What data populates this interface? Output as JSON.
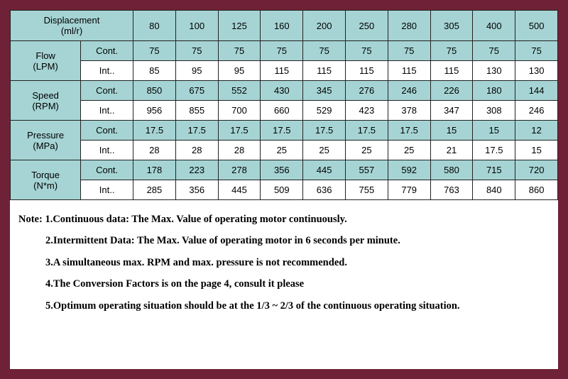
{
  "colors": {
    "page_border": "#6f2237",
    "page_bg": "#ffffff",
    "header_bg": "#a6d4d4",
    "cell_border": "#222222",
    "text": "#000000"
  },
  "header": {
    "displacement": "Displacement\n(ml/r)",
    "cols": [
      "80",
      "100",
      "125",
      "160",
      "200",
      "250",
      "280",
      "305",
      "400",
      "500"
    ]
  },
  "groups": [
    {
      "label": "Flow\n(LPM)",
      "rows": [
        {
          "type": "Cont.",
          "vals": [
            "75",
            "75",
            "75",
            "75",
            "75",
            "75",
            "75",
            "75",
            "75",
            "75"
          ]
        },
        {
          "type": "Int..",
          "vals": [
            "85",
            "95",
            "95",
            "115",
            "115",
            "115",
            "115",
            "115",
            "130",
            "130"
          ]
        }
      ]
    },
    {
      "label": "Speed\n(RPM)",
      "rows": [
        {
          "type": "Cont.",
          "vals": [
            "850",
            "675",
            "552",
            "430",
            "345",
            "276",
            "246",
            "226",
            "180",
            "144"
          ]
        },
        {
          "type": "Int..",
          "vals": [
            "956",
            "855",
            "700",
            "660",
            "529",
            "423",
            "378",
            "347",
            "308",
            "246"
          ]
        }
      ]
    },
    {
      "label": "Pressure\n(MPa)",
      "rows": [
        {
          "type": "Cont.",
          "vals": [
            "17.5",
            "17.5",
            "17.5",
            "17.5",
            "17.5",
            "17.5",
            "17.5",
            "15",
            "15",
            "12"
          ]
        },
        {
          "type": "Int..",
          "vals": [
            "28",
            "28",
            "28",
            "25",
            "25",
            "25",
            "25",
            "21",
            "17.5",
            "15"
          ]
        }
      ]
    },
    {
      "label": "Torque\n(N*m)",
      "rows": [
        {
          "type": "Cont.",
          "vals": [
            "178",
            "223",
            "278",
            "356",
            "445",
            "557",
            "592",
            "580",
            "715",
            "720"
          ]
        },
        {
          "type": "Int..",
          "vals": [
            "285",
            "356",
            "445",
            "509",
            "636",
            "755",
            "779",
            "763",
            "840",
            "860"
          ]
        }
      ]
    }
  ],
  "notes": {
    "lead": "Note: ",
    "items": [
      "1.Continuous data: The Max. Value of operating motor continuously.",
      "2.Intermittent Data: The Max. Value of operating motor in 6 seconds per minute.",
      "3.A simultaneous max. RPM and max. pressure is not recommended.",
      "4.The Conversion Factors is on the page 4, consult it please",
      "5.Optimum operating situation should be at the 1/3 ~ 2/3 of the continuous operating situation."
    ]
  }
}
